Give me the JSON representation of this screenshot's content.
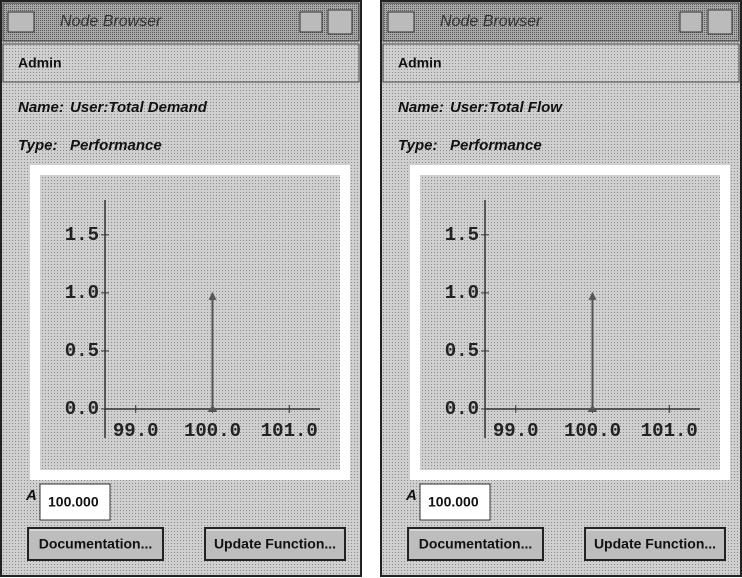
{
  "windows": [
    {
      "title": "Node Browser",
      "menu": "Admin",
      "name_label": "Name:",
      "name_value": "User:Total Demand",
      "type_label": "Type:",
      "type_value": "Performance",
      "chart": {
        "type": "stem",
        "x": [
          100
        ],
        "values": [
          1
        ],
        "xlim": [
          98.6,
          101.4
        ],
        "ylim": [
          -0.25,
          1.8
        ],
        "xticks": [
          {
            "value": 99,
            "label": "99.0"
          },
          {
            "value": 100,
            "label": "100.0"
          },
          {
            "value": 101,
            "label": "101.0"
          }
        ],
        "yticks": [
          {
            "value": 0,
            "label": "0.0"
          },
          0.5,
          {
            "value": 1,
            "label": "1.0"
          },
          1.5
        ],
        "color": "#555555"
      },
      "input_label": "A",
      "input_value": "100.000",
      "buttons": [
        "Documentation...",
        "Update Function..."
      ]
    },
    {
      "title": "Node Browser",
      "menu": "Admin",
      "name_label": "Name:",
      "name_value": "User:Total Flow",
      "type_label": "Type:",
      "type_value": "Performance",
      "chart": {
        "type": "stem",
        "x": [
          100
        ],
        "values": [
          1
        ],
        "xlim": [
          98.6,
          101.4
        ],
        "ylim": [
          -0.25,
          1.8
        ],
        "xticks": [
          {
            "value": 99,
            "label": "99.0"
          },
          {
            "value": 100,
            "label": "100.0"
          },
          {
            "value": 101,
            "label": "101.0"
          }
        ],
        "yticks": [
          {
            "value": 0,
            "label": "0.0"
          },
          0.5,
          {
            "value": 1,
            "label": "1.0"
          },
          1.5
        ],
        "color": "#555555"
      },
      "input_label": "A",
      "input_value": "100.000",
      "buttons": [
        "Documentation...",
        "Update Function..."
      ]
    }
  ]
}
